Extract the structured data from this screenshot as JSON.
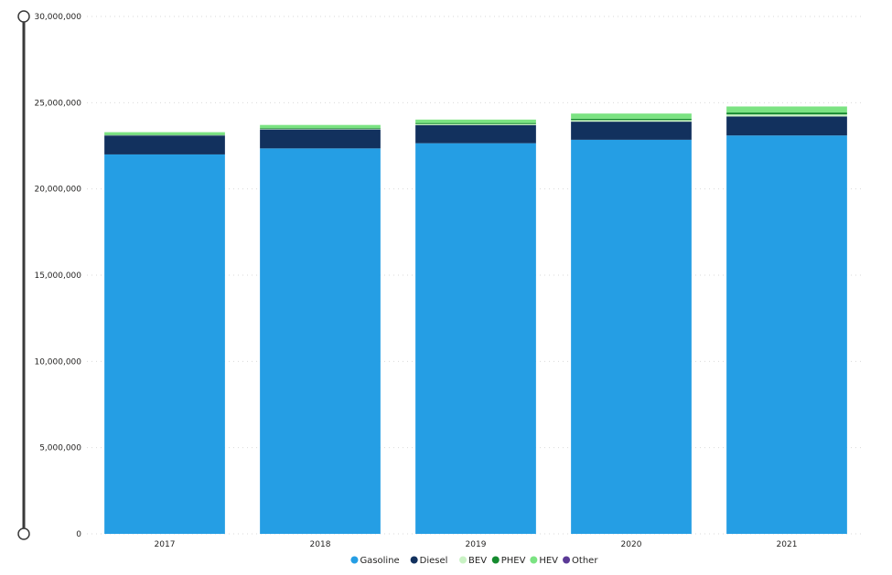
{
  "chart_data": {
    "type": "bar",
    "stacked": true,
    "categories": [
      "2017",
      "2018",
      "2019",
      "2020",
      "2021"
    ],
    "series": [
      {
        "name": "Gasoline",
        "color": "#259EE4",
        "values": [
          22000000,
          22350000,
          22650000,
          22850000,
          23100000
        ]
      },
      {
        "name": "Diesel",
        "color": "#12315E",
        "values": [
          1100000,
          1100000,
          1050000,
          1050000,
          1100000
        ]
      },
      {
        "name": "BEV",
        "color": "#C9F2C4",
        "values": [
          20000,
          40000,
          60000,
          90000,
          120000
        ]
      },
      {
        "name": "PHEV",
        "color": "#158A2E",
        "values": [
          20000,
          40000,
          60000,
          80000,
          110000
        ]
      },
      {
        "name": "HEV",
        "color": "#7BE382",
        "values": [
          150000,
          180000,
          200000,
          300000,
          350000
        ]
      },
      {
        "name": "Other",
        "color": "#5B3A96",
        "values": [
          0,
          0,
          0,
          0,
          0
        ]
      }
    ],
    "ylim": [
      0,
      30000000
    ],
    "yticks": [
      "0",
      "5,000,000",
      "10,000,000",
      "15,000,000",
      "20,000,000",
      "25,000,000",
      "30,000,000"
    ],
    "ytick_values": [
      0,
      5000000,
      10000000,
      15000000,
      20000000,
      25000000,
      30000000
    ],
    "grid": true,
    "legend_position": "bottom"
  }
}
